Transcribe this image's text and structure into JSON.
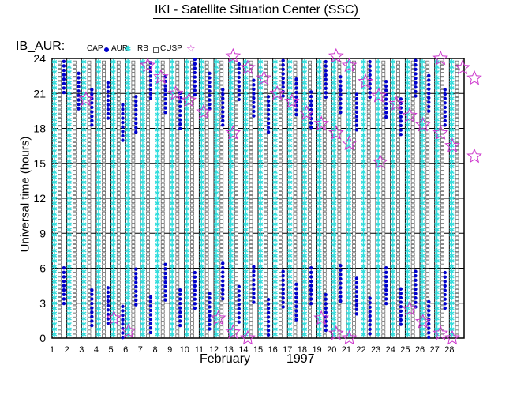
{
  "title": "IKI - Satellite Situation Center (SSC)",
  "dataset_label": "IB_AUR:",
  "legend": [
    {
      "label": "CAP",
      "color": "#0000cc",
      "icon": "filled-dot"
    },
    {
      "label": "AUR",
      "color": "#33dddd",
      "icon": "asterisk"
    },
    {
      "label": "RB",
      "color": "#555555",
      "icon": "open-square"
    },
    {
      "label": "CUSP",
      "color": "#cc33cc",
      "icon": "open-star"
    }
  ],
  "chart_data": {
    "type": "scatter",
    "title": "IKI - Satellite Situation Center (SSC)",
    "xlabel": "February",
    "xlabel_year": "1997",
    "ylabel": "Universal time (hours)",
    "x_ticks": [
      "1",
      "2",
      "3",
      "4",
      "5",
      "6",
      "7",
      "8",
      "9",
      "10",
      "11",
      "12",
      "13",
      "14",
      "15",
      "16",
      "17",
      "18",
      "19",
      "20",
      "21",
      "22",
      "23",
      "24",
      "25",
      "26",
      "27",
      "28"
    ],
    "y_ticks": [
      0,
      3,
      6,
      9,
      12,
      15,
      18,
      21,
      24
    ],
    "xlim": [
      1,
      29
    ],
    "ylim": [
      0,
      24
    ],
    "grid": true,
    "series": [
      {
        "name": "CAP",
        "color": "#0000cc",
        "marker": "filled-dot",
        "points": [
          [
            1.8,
            22.6
          ],
          [
            1.8,
            4.5
          ],
          [
            2.8,
            21.2
          ],
          [
            3.7,
            19.8
          ],
          [
            3.7,
            2.6
          ],
          [
            4.8,
            20.4
          ],
          [
            4.8,
            2.8
          ],
          [
            5.8,
            18.5
          ],
          [
            5.8,
            1.2
          ],
          [
            6.7,
            19.2
          ],
          [
            6.7,
            4.4
          ],
          [
            7.7,
            22.1
          ],
          [
            7.7,
            2.0
          ],
          [
            8.7,
            20.9
          ],
          [
            8.7,
            4.8
          ],
          [
            9.7,
            19.5
          ],
          [
            9.7,
            2.6
          ],
          [
            10.7,
            22.4
          ],
          [
            10.7,
            4.1
          ],
          [
            11.7,
            21.2
          ],
          [
            11.7,
            2.3
          ],
          [
            12.6,
            19.8
          ],
          [
            12.6,
            4.9
          ],
          [
            13.7,
            22.0
          ],
          [
            13.7,
            2.9
          ],
          [
            14.7,
            20.6
          ],
          [
            14.7,
            4.6
          ],
          [
            15.7,
            19.2
          ],
          [
            15.7,
            1.8
          ],
          [
            16.7,
            22.3
          ],
          [
            16.7,
            4.2
          ],
          [
            17.6,
            20.7
          ],
          [
            17.6,
            3.1
          ],
          [
            18.6,
            19.6
          ],
          [
            18.6,
            4.5
          ],
          [
            19.6,
            22.2
          ],
          [
            19.6,
            2.2
          ],
          [
            20.6,
            20.9
          ],
          [
            20.6,
            4.7
          ],
          [
            21.7,
            19.4
          ],
          [
            21.7,
            3.6
          ],
          [
            22.6,
            22.2
          ],
          [
            22.6,
            1.9
          ],
          [
            23.7,
            20.5
          ],
          [
            23.7,
            4.5
          ],
          [
            24.7,
            19.0
          ],
          [
            24.7,
            2.7
          ],
          [
            25.7,
            22.3
          ],
          [
            25.7,
            4.2
          ],
          [
            26.6,
            21.0
          ],
          [
            26.6,
            1.6
          ],
          [
            27.7,
            19.8
          ],
          [
            27.7,
            4.1
          ]
        ]
      },
      {
        "name": "AUR",
        "color": "#33dddd",
        "marker": "asterisk",
        "note": "near-continuous vertical bands on each day"
      },
      {
        "name": "RB",
        "color": "#555555",
        "marker": "open-square",
        "note": "near-continuous vertical columns between days"
      },
      {
        "name": "CUSP",
        "color": "#cc33cc",
        "marker": "open-star",
        "points": [
          [
            3.3,
            20.5
          ],
          [
            5.2,
            1.7
          ],
          [
            6.2,
            0.6
          ],
          [
            7.5,
            23.4
          ],
          [
            8.4,
            22.4
          ],
          [
            9.4,
            21.0
          ],
          [
            10.3,
            20.4
          ],
          [
            11.3,
            19.4
          ],
          [
            12.3,
            1.7
          ],
          [
            13.3,
            24.2
          ],
          [
            13.3,
            17.6
          ],
          [
            13.3,
            0.5
          ],
          [
            14.3,
            23.2
          ],
          [
            14.3,
            0.0
          ],
          [
            15.4,
            22.3
          ],
          [
            16.3,
            21.0
          ],
          [
            17.3,
            20.3
          ],
          [
            18.3,
            19.3
          ],
          [
            19.3,
            18.4
          ],
          [
            19.3,
            1.7
          ],
          [
            20.3,
            24.2
          ],
          [
            20.3,
            17.6
          ],
          [
            20.3,
            0.4
          ],
          [
            21.2,
            23.4
          ],
          [
            21.2,
            16.7
          ],
          [
            21.2,
            0.0
          ],
          [
            22.3,
            22.0
          ],
          [
            23.2,
            20.8
          ],
          [
            23.3,
            15.1
          ],
          [
            24.4,
            20.1
          ],
          [
            25.3,
            19.1
          ],
          [
            25.3,
            2.5
          ],
          [
            26.2,
            18.3
          ],
          [
            26.2,
            1.4
          ],
          [
            27.4,
            24.0
          ],
          [
            27.4,
            17.6
          ],
          [
            27.4,
            0.4
          ],
          [
            28.2,
            16.5
          ],
          [
            28.2,
            0.0
          ],
          [
            28.9,
            23.2
          ],
          [
            29.7,
            22.3
          ],
          [
            29.7,
            15.6
          ]
        ]
      }
    ]
  }
}
